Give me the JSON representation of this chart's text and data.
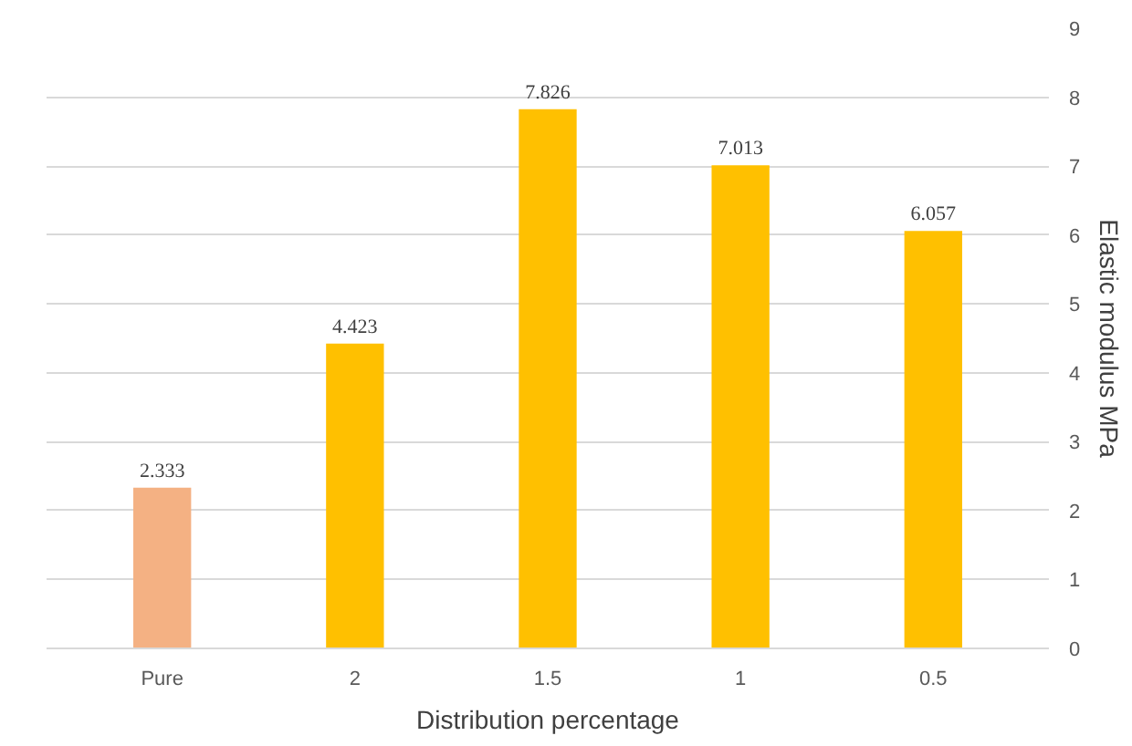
{
  "chart_data": {
    "type": "bar",
    "xlabel": "Distribution percentage",
    "ylabel": "Elastic modulus MPa",
    "categories": [
      "Pure",
      "2",
      "1.5",
      "1",
      "0.5"
    ],
    "values": [
      2.333,
      4.423,
      7.826,
      7.013,
      6.057
    ],
    "colors": [
      "#f4b183",
      "#ffc000",
      "#ffc000",
      "#ffc000",
      "#ffc000"
    ],
    "ylim": [
      0,
      9
    ],
    "yticks": [
      0,
      1,
      2,
      3,
      4,
      5,
      6,
      7,
      8,
      9
    ],
    "grid": "y",
    "data_labels": true
  }
}
